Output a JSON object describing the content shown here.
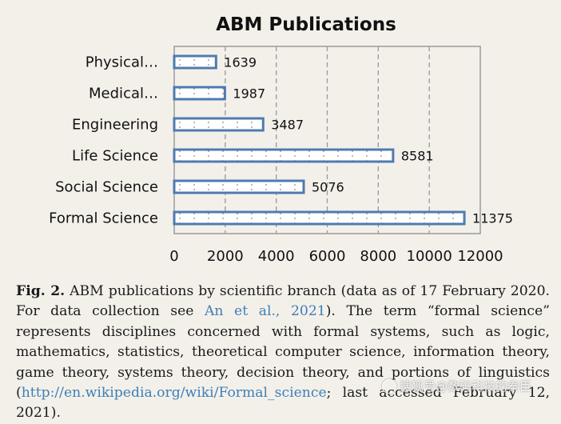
{
  "chart_data": {
    "type": "bar",
    "orientation": "horizontal",
    "title": "ABM Publications",
    "categories": [
      "Physical…",
      "Medical…",
      "Engineering",
      "Life Science",
      "Social Science",
      "Formal Science"
    ],
    "values": [
      1639,
      1987,
      3487,
      8581,
      5076,
      11375
    ],
    "xlim": [
      0,
      12000
    ],
    "xticks": [
      0,
      2000,
      4000,
      6000,
      8000,
      10000,
      12000
    ],
    "xlabel": "",
    "ylabel": "",
    "grid": "vertical dashed",
    "colors": {
      "bar_edge": "#4f7bb0",
      "bar_fill": "#ffffff",
      "dots": "#8a8a8a",
      "grid": "#999999",
      "axis": "#9a9a9a"
    }
  },
  "caption": {
    "label": "Fig. 2.",
    "text_1": " ABM publications by scientific branch (data as of 17 February 2020. For data collection see ",
    "ref_link": "An et al., 2021",
    "text_2": "). The term “formal science” represents disciplines concerned with formal systems, such as logic, mathematics, statistics, theoretical computer science, information theory, game theory, systems theory, decision theory, and portions of linguistics (",
    "url_link": "http://en.wikipedia.org/wiki/Formal_science",
    "text_3": "; last accessed February 12, 2021).",
    "link_color": "#3e7fb8"
  },
  "watermark": {
    "text": "搜狐号@数码科技的秦臣",
    "icon": "wechat-like-icon"
  }
}
